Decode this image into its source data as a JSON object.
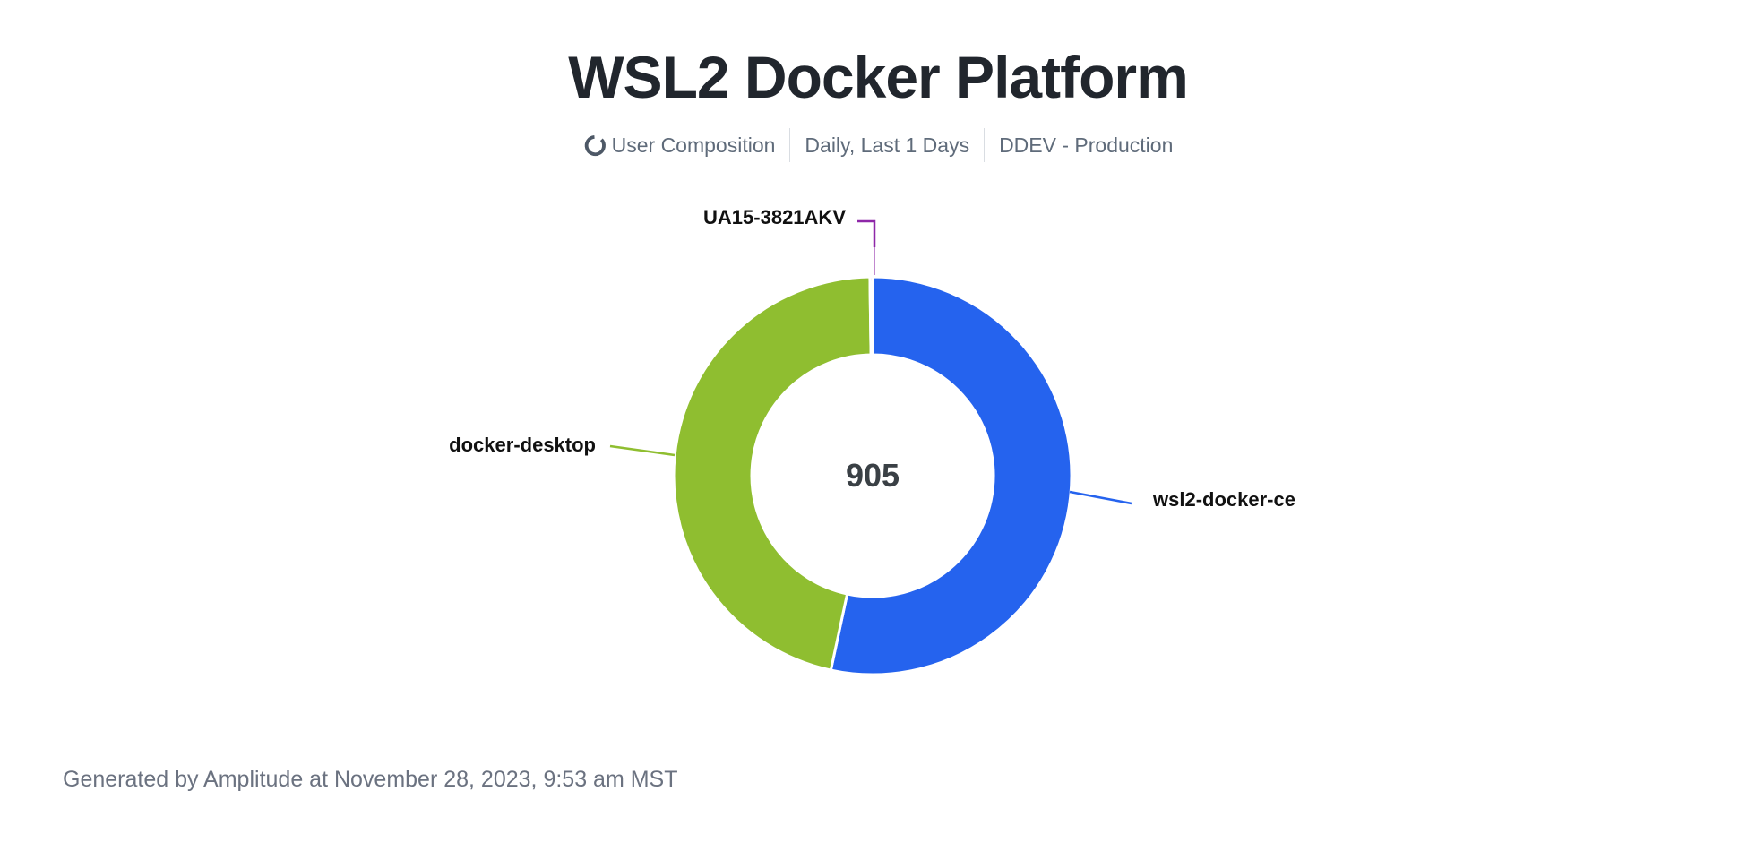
{
  "title": "WSL2 Docker Platform",
  "subtitle": {
    "metric_icon": "donut-chart-icon",
    "metric": "User Composition",
    "range": "Daily, Last 1 Days",
    "project": "DDEV - Production"
  },
  "chart_data": {
    "type": "pie",
    "donut": true,
    "title": "WSL2 Docker Platform",
    "total": 905,
    "total_label": "905",
    "start_angle_deg": 0,
    "direction": "clockwise",
    "inner_radius_ratio": 0.61,
    "segments": [
      {
        "label": "wsl2-docker-ce",
        "value": 483,
        "percent": 53.4,
        "color": "#2563EE"
      },
      {
        "label": "docker-desktop",
        "value": 420,
        "percent": 46.4,
        "color": "#8FBE30"
      },
      {
        "label": "UA15-3821AKV",
        "value": 2,
        "percent": 0.2,
        "color": "#8E27A8"
      }
    ]
  },
  "colors": {
    "background": "#FFFFFF",
    "title_text": "#21262D",
    "subtitle_text": "#5F6B7A",
    "divider": "#D9DDE2",
    "label_text": "#111111",
    "center_value_text": "#3A4045",
    "footer_text": "#6B7280",
    "segment_border": "#FFFFFF"
  },
  "footer": "Generated by Amplitude at November 28, 2023, 9:53 am MST"
}
